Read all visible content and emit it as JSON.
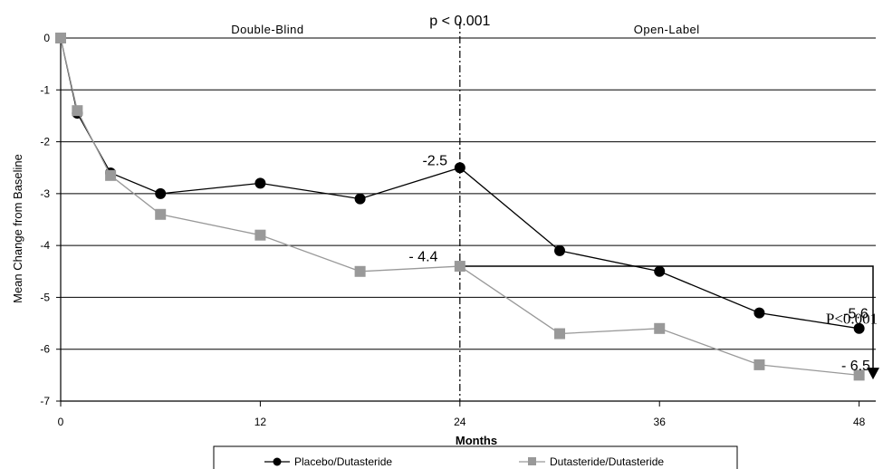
{
  "chart_data": {
    "type": "line",
    "title": "",
    "xlabel": "Months",
    "ylabel": "Mean Change from Baseline",
    "xlim": [
      0,
      49
    ],
    "ylim": [
      -7,
      0
    ],
    "xticks": [
      0,
      12,
      24,
      36,
      48
    ],
    "yticks": [
      0,
      -1,
      -2,
      -3,
      -4,
      -5,
      -6,
      -7
    ],
    "grid": "horizontal",
    "legend_position": "bottom",
    "series": [
      {
        "name": "Placebo/Dutasteride",
        "marker": "circle",
        "color": "#000000",
        "x": [
          0,
          1,
          3,
          6,
          12,
          18,
          24,
          30,
          36,
          42,
          48
        ],
        "y": [
          0,
          -1.45,
          -2.6,
          -3.0,
          -2.8,
          -3.1,
          -2.5,
          -4.1,
          -4.5,
          -5.3,
          -5.6
        ]
      },
      {
        "name": "Dutasteride/Dutasteride",
        "marker": "square",
        "color": "#999999",
        "x": [
          0,
          1,
          3,
          6,
          12,
          18,
          24,
          30,
          36,
          42,
          48
        ],
        "y": [
          0,
          -1.4,
          -2.65,
          -3.4,
          -3.8,
          -4.5,
          -4.4,
          -5.7,
          -5.6,
          -6.3,
          -6.5
        ]
      }
    ],
    "divider_x": 24,
    "regions": [
      {
        "label": "Double-Blind",
        "x": 12
      },
      {
        "label": "Open-Label",
        "x": 36
      }
    ],
    "annotations": [
      {
        "text": "p < 0.001",
        "x": 24,
        "y": 0.35
      },
      {
        "text": "-2.5",
        "x": 22.5,
        "y": -2.35
      },
      {
        "text": "- 4.4",
        "x": 21.8,
        "y": -4.2
      },
      {
        "text": "-5.6",
        "x": 47.8,
        "y": -5.3
      },
      {
        "text": "- 6.5",
        "x": 47.8,
        "y": -6.3
      },
      {
        "text": "P<0.001",
        "x": 46,
        "y": -5.4
      }
    ],
    "bracket": {
      "from_x": 24,
      "to_x": 49,
      "from_y": -4.4,
      "to_y": -6.6
    }
  }
}
